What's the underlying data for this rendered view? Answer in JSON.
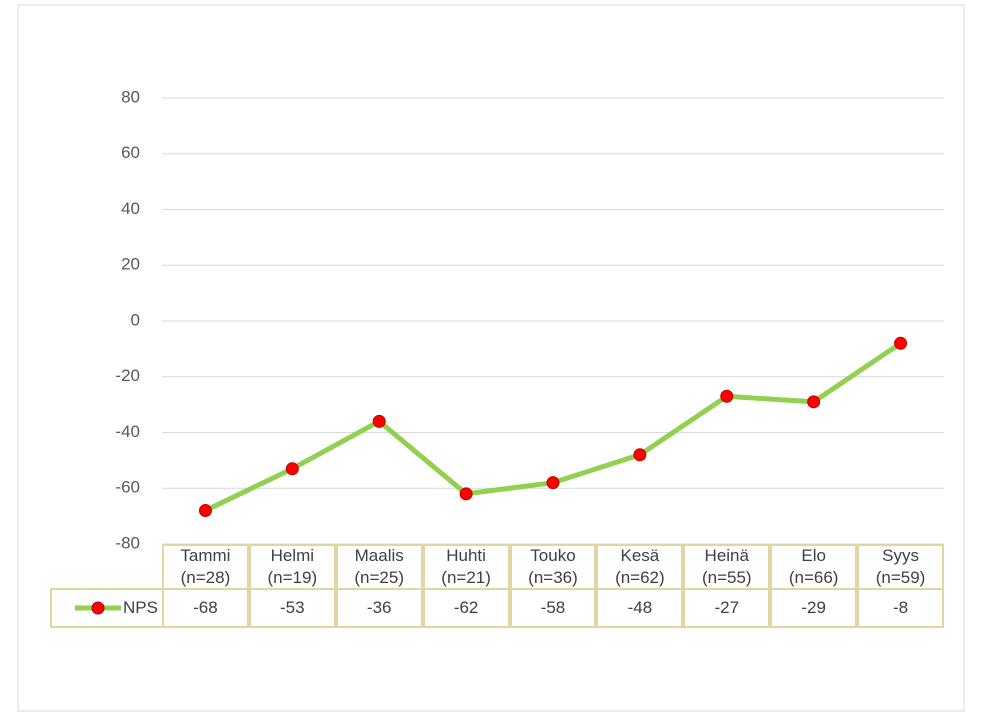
{
  "chart_data": {
    "type": "line",
    "categories": [
      "Tammi (n=28)",
      "Helmi (n=19)",
      "Maalis (n=25)",
      "Huhti (n=21)",
      "Touko (n=36)",
      "Kesä (n=62)",
      "Heinä (n=55)",
      "Elo (n=66)",
      "Syys (n=59)"
    ],
    "series": [
      {
        "name": "NPS",
        "color": "#92d050",
        "marker_color": "#ff0000",
        "values": [
          -68,
          -53,
          -36,
          -62,
          -58,
          -48,
          -27,
          -29,
          -8
        ]
      }
    ],
    "ylim": [
      -80,
      80
    ],
    "yticks": [
      -80,
      -60,
      -40,
      -20,
      0,
      20,
      40,
      60,
      80
    ],
    "grid": true,
    "data_table": true
  }
}
